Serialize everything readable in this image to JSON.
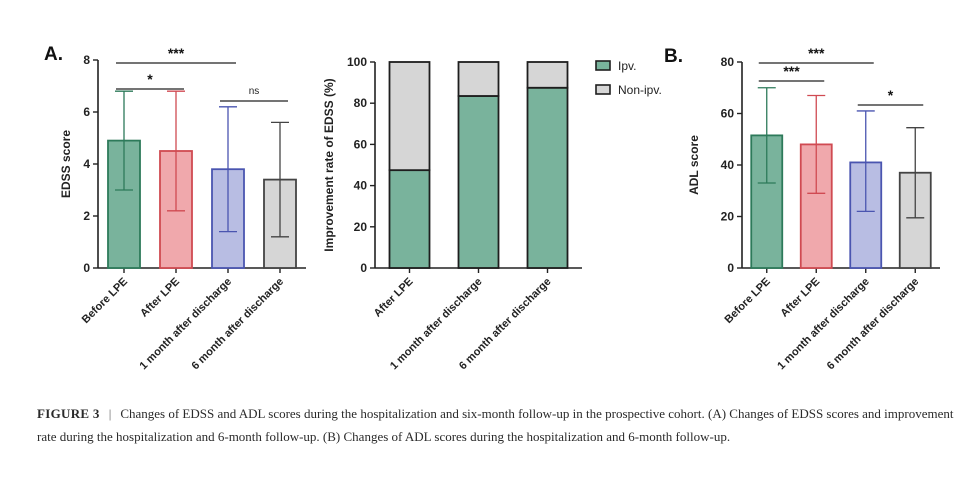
{
  "caption": {
    "label": "FIGURE 3",
    "separator": "|",
    "text": "Changes of EDSS and ADL scores during the hospitalization and six-month follow-up in the prospective cohort. (A) Changes of EDSS scores and improvement rate during the hospitalization and 6-month follow-up. (B) Changes of ADL scores during the hospitalization and 6-month follow-up."
  },
  "colors": {
    "green": "#79b39c",
    "green_edge": "#2d7a5a",
    "red": "#f0a8ac",
    "red_edge": "#d04a52",
    "blue": "#b8bde3",
    "blue_edge": "#4a55b0",
    "gray": "#d6d6d6",
    "gray_edge": "#444444"
  },
  "chart_data": [
    {
      "type": "bar",
      "panel": "A.",
      "ylabel": "EDSS score",
      "ylim": [
        0,
        8
      ],
      "yticks": [
        0,
        2,
        4,
        6,
        8
      ],
      "categories": [
        "Before LPE",
        "After LPE",
        "1 month after discharge",
        "6 month after discharge"
      ],
      "values": [
        4.9,
        4.5,
        3.8,
        3.4
      ],
      "error_upper": [
        6.8,
        6.8,
        6.2,
        5.6
      ],
      "error_lower": [
        3.0,
        2.2,
        1.4,
        1.2
      ],
      "bar_colors": [
        "green",
        "red",
        "blue",
        "gray"
      ],
      "significance": [
        {
          "from": 0,
          "to": 1,
          "label": "*"
        },
        {
          "from": 0,
          "to": 2,
          "label": "***"
        },
        {
          "from": 2,
          "to": 3,
          "label": "ns"
        }
      ]
    },
    {
      "type": "bar",
      "stacked": true,
      "ylabel": "Improvement rate of EDSS (%)",
      "ylim": [
        0,
        100
      ],
      "yticks": [
        0,
        20,
        40,
        60,
        80,
        100
      ],
      "categories": [
        "After LPE",
        "1 month after discharge",
        "6 month after discharge"
      ],
      "series": [
        {
          "name": "Ipv.",
          "values": [
            47.5,
            83.5,
            87.5
          ],
          "color": "green"
        },
        {
          "name": "Non-ipv.",
          "values": [
            52.5,
            16.5,
            12.5
          ],
          "color": "gray"
        }
      ],
      "legend": "top-right"
    },
    {
      "type": "bar",
      "panel": "B.",
      "ylabel": "ADL score",
      "ylim": [
        0,
        80
      ],
      "yticks": [
        0,
        20,
        40,
        60,
        80
      ],
      "categories": [
        "Before LPE",
        "After LPE",
        "1 month after discharge",
        "6 month after discharge"
      ],
      "values": [
        51.5,
        48,
        41,
        37
      ],
      "error_upper": [
        70,
        67,
        61,
        54.5
      ],
      "error_lower": [
        33,
        29,
        22,
        19.5
      ],
      "bar_colors": [
        "green",
        "red",
        "blue",
        "gray"
      ],
      "significance": [
        {
          "from": 0,
          "to": 1,
          "label": "***"
        },
        {
          "from": 0,
          "to": 2,
          "label": "***"
        },
        {
          "from": 2,
          "to": 3,
          "label": "*"
        }
      ]
    }
  ]
}
